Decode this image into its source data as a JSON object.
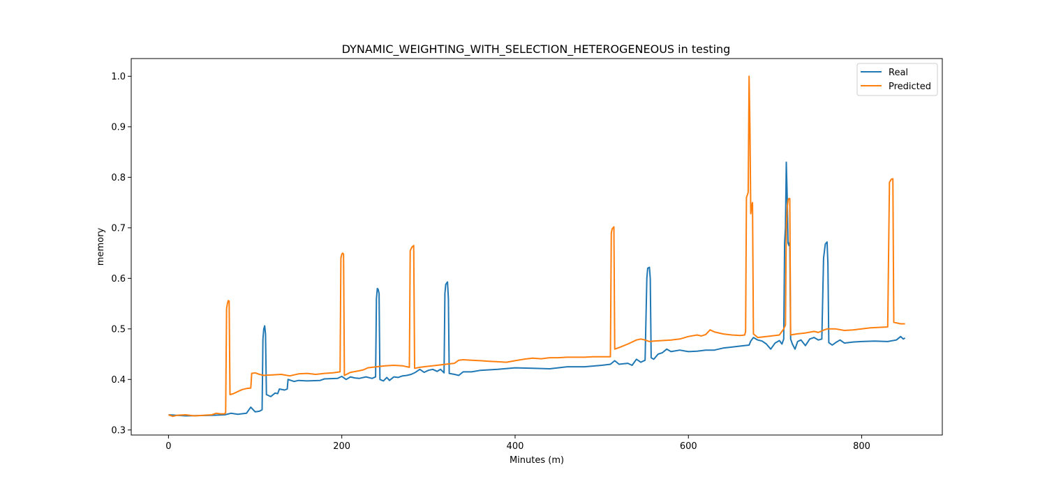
{
  "chart_data": {
    "type": "line",
    "title": "DYNAMIC_WEIGHTING_WITH_SELECTION_HETEROGENEOUS in testing",
    "xlabel": "Minutes (m)",
    "ylabel": "memory",
    "xlim": [
      -43,
      893
    ],
    "ylim": [
      0.29,
      1.035
    ],
    "xticks": [
      0,
      200,
      400,
      600,
      800
    ],
    "xtick_labels": [
      "0",
      "200",
      "400",
      "600",
      "800"
    ],
    "yticks": [
      0.3,
      0.4,
      0.5,
      0.6,
      0.7,
      0.8,
      0.9,
      1.0
    ],
    "ytick_labels": [
      "0.3",
      "0.4",
      "0.5",
      "0.6",
      "0.7",
      "0.8",
      "0.9",
      "1.0"
    ],
    "grid": false,
    "legend_position": "top-right",
    "series": [
      {
        "name": "Real",
        "color": "#1f77b4",
        "points": [
          [
            0,
            0.33
          ],
          [
            20,
            0.328
          ],
          [
            50,
            0.329
          ],
          [
            65,
            0.33
          ],
          [
            72,
            0.333
          ],
          [
            80,
            0.331
          ],
          [
            90,
            0.333
          ],
          [
            95,
            0.345
          ],
          [
            100,
            0.336
          ],
          [
            105,
            0.337
          ],
          [
            108,
            0.34
          ],
          [
            109,
            0.48
          ],
          [
            110,
            0.5
          ],
          [
            111,
            0.506
          ],
          [
            112,
            0.49
          ],
          [
            113,
            0.37
          ],
          [
            118,
            0.366
          ],
          [
            123,
            0.373
          ],
          [
            126,
            0.372
          ],
          [
            128,
            0.381
          ],
          [
            134,
            0.379
          ],
          [
            137,
            0.381
          ],
          [
            138,
            0.4
          ],
          [
            145,
            0.396
          ],
          [
            150,
            0.398
          ],
          [
            160,
            0.397
          ],
          [
            175,
            0.398
          ],
          [
            180,
            0.401
          ],
          [
            195,
            0.402
          ],
          [
            200,
            0.406
          ],
          [
            205,
            0.4
          ],
          [
            210,
            0.405
          ],
          [
            215,
            0.403
          ],
          [
            220,
            0.402
          ],
          [
            228,
            0.405
          ],
          [
            235,
            0.402
          ],
          [
            239,
            0.405
          ],
          [
            240,
            0.56
          ],
          [
            241,
            0.58
          ],
          [
            242,
            0.578
          ],
          [
            243,
            0.57
          ],
          [
            244,
            0.4
          ],
          [
            248,
            0.397
          ],
          [
            252,
            0.404
          ],
          [
            255,
            0.398
          ],
          [
            260,
            0.405
          ],
          [
            265,
            0.404
          ],
          [
            270,
            0.407
          ],
          [
            275,
            0.408
          ],
          [
            280,
            0.41
          ],
          [
            285,
            0.414
          ],
          [
            290,
            0.42
          ],
          [
            295,
            0.414
          ],
          [
            300,
            0.418
          ],
          [
            305,
            0.42
          ],
          [
            310,
            0.416
          ],
          [
            314,
            0.42
          ],
          [
            318,
            0.413
          ],
          [
            319,
            0.57
          ],
          [
            320,
            0.588
          ],
          [
            322,
            0.593
          ],
          [
            323,
            0.56
          ],
          [
            324,
            0.412
          ],
          [
            330,
            0.41
          ],
          [
            335,
            0.408
          ],
          [
            340,
            0.415
          ],
          [
            350,
            0.415
          ],
          [
            360,
            0.418
          ],
          [
            380,
            0.42
          ],
          [
            400,
            0.423
          ],
          [
            420,
            0.422
          ],
          [
            440,
            0.421
          ],
          [
            460,
            0.425
          ],
          [
            480,
            0.425
          ],
          [
            500,
            0.428
          ],
          [
            510,
            0.43
          ],
          [
            515,
            0.437
          ],
          [
            520,
            0.43
          ],
          [
            530,
            0.432
          ],
          [
            535,
            0.428
          ],
          [
            540,
            0.44
          ],
          [
            545,
            0.434
          ],
          [
            550,
            0.438
          ],
          [
            552,
            0.6
          ],
          [
            553,
            0.62
          ],
          [
            555,
            0.622
          ],
          [
            556,
            0.6
          ],
          [
            557,
            0.443
          ],
          [
            560,
            0.44
          ],
          [
            565,
            0.45
          ],
          [
            570,
            0.453
          ],
          [
            575,
            0.46
          ],
          [
            580,
            0.455
          ],
          [
            590,
            0.458
          ],
          [
            600,
            0.455
          ],
          [
            610,
            0.456
          ],
          [
            620,
            0.458
          ],
          [
            630,
            0.458
          ],
          [
            640,
            0.462
          ],
          [
            650,
            0.464
          ],
          [
            660,
            0.466
          ],
          [
            670,
            0.468
          ],
          [
            672,
            0.476
          ],
          [
            675,
            0.483
          ],
          [
            680,
            0.478
          ],
          [
            685,
            0.476
          ],
          [
            690,
            0.47
          ],
          [
            695,
            0.46
          ],
          [
            700,
            0.472
          ],
          [
            705,
            0.477
          ],
          [
            708,
            0.47
          ],
          [
            710,
            0.48
          ],
          [
            711,
            0.67
          ],
          [
            712,
            0.7
          ],
          [
            713,
            0.83
          ],
          [
            714,
            0.76
          ],
          [
            715,
            0.67
          ],
          [
            716,
            0.665
          ],
          [
            717,
            0.672
          ],
          [
            718,
            0.48
          ],
          [
            720,
            0.47
          ],
          [
            723,
            0.46
          ],
          [
            726,
            0.475
          ],
          [
            730,
            0.478
          ],
          [
            735,
            0.467
          ],
          [
            740,
            0.48
          ],
          [
            745,
            0.483
          ],
          [
            750,
            0.478
          ],
          [
            754,
            0.48
          ],
          [
            756,
            0.64
          ],
          [
            758,
            0.668
          ],
          [
            760,
            0.672
          ],
          [
            761,
            0.63
          ],
          [
            762,
            0.473
          ],
          [
            766,
            0.468
          ],
          [
            770,
            0.473
          ],
          [
            775,
            0.478
          ],
          [
            780,
            0.472
          ],
          [
            790,
            0.474
          ],
          [
            800,
            0.475
          ],
          [
            815,
            0.476
          ],
          [
            830,
            0.475
          ],
          [
            840,
            0.478
          ],
          [
            845,
            0.485
          ],
          [
            848,
            0.48
          ],
          [
            850,
            0.482
          ]
        ]
      },
      {
        "name": "Predicted",
        "color": "#ff7f0e",
        "points": [
          [
            0,
            0.33
          ],
          [
            5,
            0.327
          ],
          [
            10,
            0.329
          ],
          [
            20,
            0.33
          ],
          [
            30,
            0.328
          ],
          [
            40,
            0.329
          ],
          [
            50,
            0.33
          ],
          [
            55,
            0.333
          ],
          [
            60,
            0.332
          ],
          [
            65,
            0.332
          ],
          [
            66,
            0.335
          ],
          [
            67,
            0.54
          ],
          [
            68,
            0.55
          ],
          [
            69,
            0.556
          ],
          [
            70,
            0.555
          ],
          [
            71,
            0.37
          ],
          [
            75,
            0.372
          ],
          [
            80,
            0.376
          ],
          [
            85,
            0.38
          ],
          [
            90,
            0.382
          ],
          [
            95,
            0.383
          ],
          [
            96,
            0.412
          ],
          [
            100,
            0.413
          ],
          [
            105,
            0.41
          ],
          [
            110,
            0.408
          ],
          [
            120,
            0.409
          ],
          [
            130,
            0.41
          ],
          [
            140,
            0.407
          ],
          [
            150,
            0.411
          ],
          [
            160,
            0.412
          ],
          [
            170,
            0.41
          ],
          [
            180,
            0.412
          ],
          [
            190,
            0.413
          ],
          [
            198,
            0.415
          ],
          [
            199,
            0.64
          ],
          [
            200,
            0.648
          ],
          [
            201,
            0.65
          ],
          [
            202,
            0.648
          ],
          [
            203,
            0.408
          ],
          [
            210,
            0.414
          ],
          [
            220,
            0.417
          ],
          [
            225,
            0.419
          ],
          [
            230,
            0.423
          ],
          [
            240,
            0.425
          ],
          [
            250,
            0.427
          ],
          [
            260,
            0.428
          ],
          [
            270,
            0.427
          ],
          [
            278,
            0.424
          ],
          [
            279,
            0.655
          ],
          [
            281,
            0.662
          ],
          [
            283,
            0.665
          ],
          [
            284,
            0.422
          ],
          [
            290,
            0.424
          ],
          [
            300,
            0.426
          ],
          [
            310,
            0.428
          ],
          [
            320,
            0.43
          ],
          [
            330,
            0.432
          ],
          [
            335,
            0.438
          ],
          [
            340,
            0.439
          ],
          [
            350,
            0.438
          ],
          [
            360,
            0.437
          ],
          [
            370,
            0.436
          ],
          [
            380,
            0.435
          ],
          [
            390,
            0.434
          ],
          [
            400,
            0.437
          ],
          [
            410,
            0.44
          ],
          [
            420,
            0.442
          ],
          [
            430,
            0.441
          ],
          [
            440,
            0.443
          ],
          [
            450,
            0.443
          ],
          [
            460,
            0.444
          ],
          [
            470,
            0.444
          ],
          [
            480,
            0.444
          ],
          [
            490,
            0.445
          ],
          [
            500,
            0.445
          ],
          [
            510,
            0.445
          ],
          [
            511,
            0.69
          ],
          [
            512,
            0.698
          ],
          [
            514,
            0.702
          ],
          [
            515,
            0.46
          ],
          [
            520,
            0.463
          ],
          [
            530,
            0.47
          ],
          [
            535,
            0.474
          ],
          [
            540,
            0.478
          ],
          [
            545,
            0.48
          ],
          [
            550,
            0.478
          ],
          [
            555,
            0.475
          ],
          [
            560,
            0.476
          ],
          [
            570,
            0.477
          ],
          [
            580,
            0.478
          ],
          [
            590,
            0.48
          ],
          [
            600,
            0.485
          ],
          [
            610,
            0.488
          ],
          [
            615,
            0.486
          ],
          [
            620,
            0.489
          ],
          [
            625,
            0.498
          ],
          [
            630,
            0.494
          ],
          [
            640,
            0.49
          ],
          [
            650,
            0.488
          ],
          [
            660,
            0.487
          ],
          [
            665,
            0.488
          ],
          [
            666,
            0.495
          ],
          [
            667,
            0.76
          ],
          [
            668,
            0.765
          ],
          [
            669,
            0.77
          ],
          [
            670,
            1.0
          ],
          [
            671,
            0.9
          ],
          [
            672,
            0.728
          ],
          [
            673,
            0.745
          ],
          [
            674,
            0.75
          ],
          [
            675,
            0.49
          ],
          [
            680,
            0.483
          ],
          [
            690,
            0.485
          ],
          [
            700,
            0.487
          ],
          [
            705,
            0.488
          ],
          [
            710,
            0.5
          ],
          [
            712,
            0.508
          ],
          [
            713,
            0.7
          ],
          [
            714,
            0.74
          ],
          [
            715,
            0.755
          ],
          [
            716,
            0.758
          ],
          [
            717,
            0.758
          ],
          [
            718,
            0.488
          ],
          [
            725,
            0.49
          ],
          [
            735,
            0.492
          ],
          [
            745,
            0.495
          ],
          [
            750,
            0.493
          ],
          [
            755,
            0.497
          ],
          [
            760,
            0.5
          ],
          [
            770,
            0.5
          ],
          [
            780,
            0.497
          ],
          [
            790,
            0.498
          ],
          [
            800,
            0.5
          ],
          [
            810,
            0.502
          ],
          [
            820,
            0.503
          ],
          [
            830,
            0.504
          ],
          [
            832,
            0.79
          ],
          [
            834,
            0.796
          ],
          [
            836,
            0.797
          ],
          [
            837,
            0.513
          ],
          [
            840,
            0.512
          ],
          [
            845,
            0.51
          ],
          [
            850,
            0.51
          ]
        ]
      }
    ]
  }
}
